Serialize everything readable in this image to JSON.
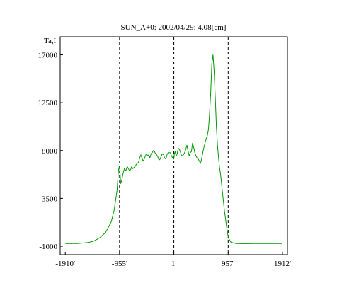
{
  "chart_data": {
    "type": "line",
    "title": "SUN_A+0: 2002/04/29: 4.08[cm]",
    "ylabel": "Ta,I",
    "xlabel": "",
    "xlim": [
      -2000,
      2000
    ],
    "ylim": [
      -1800,
      18700
    ],
    "grid": false,
    "legend": "none",
    "x_ticks": [
      {
        "value": -1910,
        "label": "-1910'"
      },
      {
        "value": -955,
        "label": "-955'"
      },
      {
        "value": 1,
        "label": "1'"
      },
      {
        "value": 957,
        "label": "957'"
      },
      {
        "value": 1912,
        "label": "1912'"
      }
    ],
    "y_ticks": [
      {
        "value": -1000,
        "label": "-1000"
      },
      {
        "value": 3500,
        "label": "3500"
      },
      {
        "value": 8000,
        "label": "8000"
      },
      {
        "value": 12500,
        "label": "12500"
      },
      {
        "value": 17000,
        "label": "17000"
      }
    ],
    "reference_lines_x": [
      -955,
      1,
      957
    ],
    "series": [
      {
        "color": "#009900",
        "x": [
          -1910,
          -1700,
          -1500,
          -1400,
          -1300,
          -1200,
          -1100,
          -1050,
          -1000,
          -975,
          -960,
          -950,
          -935,
          -915,
          -895,
          -870,
          -845,
          -820,
          -800,
          -780,
          -760,
          -740,
          -720,
          -700,
          -680,
          -660,
          -640,
          -620,
          -600,
          -580,
          -560,
          -540,
          -520,
          -500,
          -480,
          -460,
          -440,
          -420,
          -400,
          -380,
          -360,
          -340,
          -320,
          -300,
          -280,
          -260,
          -240,
          -220,
          -200,
          -180,
          -160,
          -140,
          -120,
          -100,
          -80,
          -60,
          -40,
          -20,
          0,
          10,
          25,
          40,
          55,
          70,
          85,
          100,
          115,
          130,
          150,
          170,
          190,
          210,
          230,
          250,
          270,
          290,
          310,
          330,
          350,
          370,
          390,
          410,
          430,
          450,
          470,
          490,
          510,
          530,
          550,
          570,
          590,
          610,
          630,
          650,
          670,
          690,
          710,
          730,
          750,
          770,
          790,
          805,
          820,
          835,
          850,
          870,
          890,
          910,
          930,
          950,
          970,
          1000,
          1050,
          1100,
          1200,
          1300,
          1400,
          1500,
          1700,
          1912
        ],
        "values": [
          -750,
          -750,
          -650,
          -500,
          -200,
          300,
          1300,
          2400,
          4200,
          6100,
          6500,
          6200,
          4900,
          5200,
          5800,
          6300,
          6100,
          6500,
          6300,
          6100,
          6200,
          6500,
          6300,
          6400,
          6500,
          6700,
          6800,
          6900,
          7300,
          7600,
          7300,
          7000,
          7200,
          7500,
          7700,
          7500,
          7600,
          7300,
          7700,
          7800,
          8000,
          7900,
          7700,
          7600,
          7400,
          7100,
          7200,
          7500,
          7700,
          7600,
          7300,
          7200,
          7600,
          7800,
          7800,
          7800,
          7500,
          7300,
          7200,
          7700,
          7900,
          7500,
          7600,
          8000,
          8200,
          8100,
          7900,
          7600,
          7500,
          7600,
          7800,
          8100,
          8500,
          8000,
          7500,
          7800,
          7900,
          8700,
          8300,
          7800,
          7500,
          7300,
          7200,
          7000,
          6800,
          7200,
          7800,
          8300,
          8700,
          9100,
          9400,
          10000,
          11500,
          13500,
          16200,
          17000,
          15500,
          13000,
          10200,
          8400,
          7200,
          6400,
          5900,
          5200,
          4400,
          3400,
          2400,
          1600,
          800,
          100,
          -300,
          -600,
          -700,
          -750,
          -760,
          -760,
          -750,
          -750,
          -750,
          -750
        ]
      }
    ]
  }
}
